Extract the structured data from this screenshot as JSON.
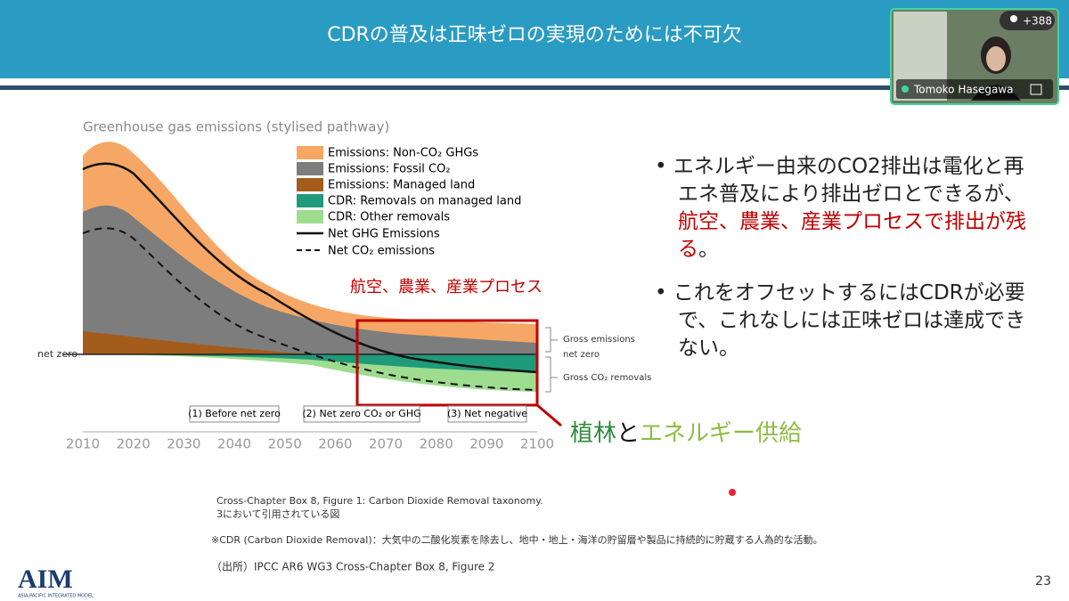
{
  "slide": {
    "title": "CDRの普及は正味ゼロの実現のためには不可欠",
    "participant": {
      "count_badge": "+388",
      "name": "Tomoko Hasegawa"
    },
    "figure": {
      "title": "Greenhouse gas emissions (stylised pathway)",
      "legend": [
        "Emissions: Non-CO₂ GHGs",
        "Emissions: Fossil CO₂",
        "Emissions: Managed land",
        "CDR: Removals on managed land",
        "CDR: Other removals",
        "Net GHG Emissions",
        "Net CO₂ emissions"
      ],
      "net_zero_left": "net zero",
      "right_labels": [
        "Gross emissions",
        "net zero",
        "Gross CO₂ removals"
      ],
      "phases": [
        "(1) Before net zero",
        "(2) Net zero CO₂ or GHG",
        "(3) Net negative"
      ],
      "x_ticks": [
        2010,
        2020,
        2030,
        2040,
        2050,
        2060,
        2070,
        2080,
        2090,
        2100
      ],
      "highlight_label": "航空、農業、産業プロセス"
    },
    "bullets": [
      {
        "before": "エネルギー由来のCO2排出は電化と再エネ普及により排出ゼロとできるが、",
        "highlight": "航空、農業、産業プロセスで排出が残る",
        "after": "。"
      },
      {
        "before": "これをオフセットするにはCDRが必要で、これなしには正味ゼロは達成できない。"
      }
    ],
    "callout": {
      "part1": "植林",
      "part2": "と",
      "part3": "エネルギー供給"
    },
    "notes": {
      "source_line1": "Cross-Chapter Box 8, Figure 1: Carbon Dioxide Removal taxonomy.",
      "source_line2": "3において引用されている図",
      "definition": "※CDR (Carbon Dioxide Removal)：大気中の二酸化炭素を除去し、地中・地上・海洋の貯留層や製品に持続的に貯蔵する人為的な活動。",
      "citation": "（出所）IPCC AR6 WG3  Cross-Chapter Box 8, Figure 2"
    },
    "logo": {
      "name": "AIM",
      "subtitle": "ASIA-PACIFIC INTEGRATED MODEL"
    },
    "page_number": "23"
  }
}
